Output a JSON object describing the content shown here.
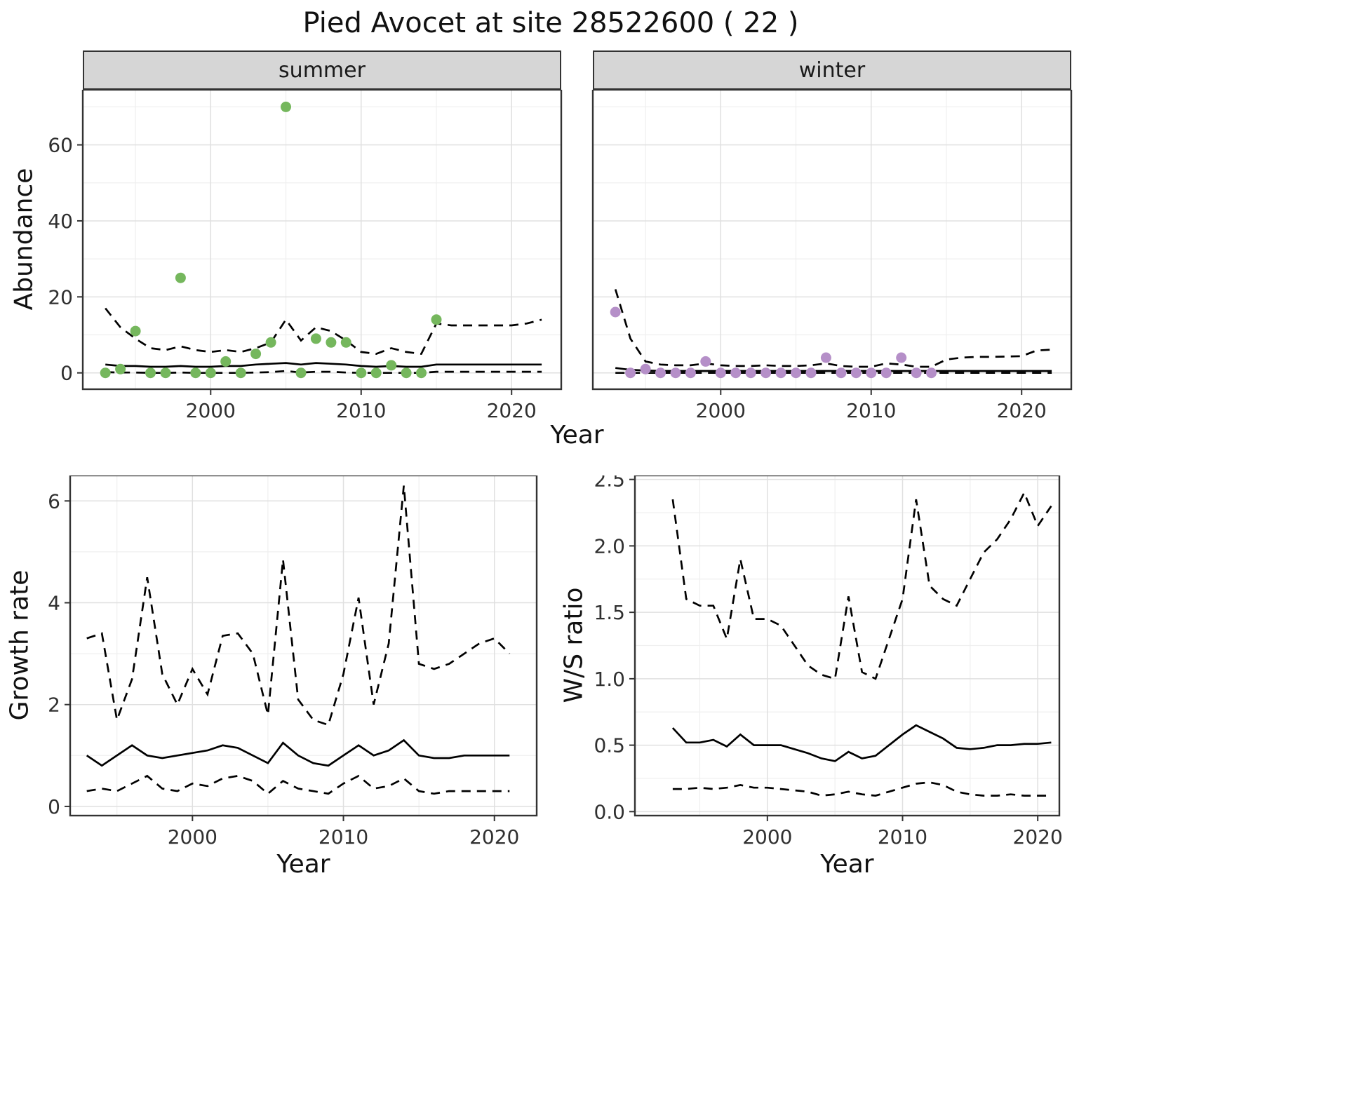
{
  "title": "Pied Avocet at site 28522600 ( 22 )",
  "chart_data": [
    {
      "id": "abundance-summer",
      "type": "scatter",
      "facet_label": "summer",
      "xlabel": "Year",
      "ylabel": "Abundance",
      "xlim": [
        1991.5,
        2023.3
      ],
      "ylim": [
        -4.3,
        74.5
      ],
      "xticks": {
        "major": [
          2000,
          2010,
          2020
        ],
        "labels": [
          "2000",
          "2010",
          "2020"
        ],
        "minor": [
          1995,
          2005,
          2015
        ]
      },
      "yticks": {
        "major": [
          0,
          20,
          40,
          60
        ],
        "labels": [
          "0",
          "20",
          "40",
          "60"
        ],
        "minor": [
          10,
          30,
          50,
          70
        ]
      },
      "point_color": "#75b75d",
      "points": {
        "x": [
          1993,
          1994,
          1995,
          1996,
          1997,
          1998,
          1999,
          2000,
          2001,
          2002,
          2003,
          2004,
          2005,
          2006,
          2007,
          2008,
          2009,
          2010,
          2011,
          2012,
          2013,
          2014,
          2015
        ],
        "y": [
          0,
          1,
          11,
          0,
          0,
          25,
          0,
          0,
          3,
          0,
          5,
          8,
          70,
          0,
          9,
          8,
          8,
          0,
          0,
          2,
          0,
          0,
          14
        ]
      },
      "lines_x": [
        1993,
        1994,
        1995,
        1996,
        1997,
        1998,
        1999,
        2000,
        2001,
        2002,
        2003,
        2004,
        2005,
        2006,
        2007,
        2008,
        2009,
        2010,
        2011,
        2012,
        2013,
        2014,
        2015,
        2016,
        2017,
        2018,
        2019,
        2020,
        2021,
        2022
      ],
      "lines": [
        {
          "name": "fit",
          "style": "solid",
          "y": [
            2.2,
            1.8,
            1.8,
            1.6,
            1.6,
            1.8,
            1.6,
            1.6,
            1.8,
            1.8,
            2.2,
            2.4,
            2.6,
            2.2,
            2.6,
            2.4,
            2.2,
            1.8,
            1.6,
            1.8,
            1.6,
            1.6,
            2.2,
            2.2,
            2.2,
            2.2,
            2.2,
            2.2,
            2.2,
            2.2
          ]
        },
        {
          "name": "upper-ci",
          "style": "dashed",
          "y": [
            17,
            12,
            9,
            6.5,
            6,
            7,
            6,
            5.5,
            6,
            5.5,
            6.5,
            8,
            14,
            8.5,
            12,
            11,
            8.5,
            5.5,
            5,
            6.5,
            5.5,
            5,
            13,
            12.5,
            12.5,
            12.5,
            12.5,
            12.5,
            13,
            14
          ]
        },
        {
          "name": "lower-ci",
          "style": "dashed",
          "y": [
            0.2,
            0.1,
            0.1,
            0,
            0,
            0.1,
            0,
            0,
            0,
            0,
            0.1,
            0.2,
            0.5,
            0.1,
            0.3,
            0.3,
            0.1,
            0,
            0,
            0,
            0,
            0,
            0.3,
            0.3,
            0.3,
            0.3,
            0.3,
            0.3,
            0.3,
            0.3
          ]
        }
      ]
    },
    {
      "id": "abundance-winter",
      "type": "scatter",
      "facet_label": "winter",
      "xlabel": "Year",
      "ylabel": "Abundance",
      "xlim": [
        1991.5,
        2023.3
      ],
      "ylim": [
        -4.3,
        74.5
      ],
      "xticks": {
        "major": [
          2000,
          2010,
          2020
        ],
        "labels": [
          "2000",
          "2010",
          "2020"
        ],
        "minor": [
          1995,
          2005,
          2015
        ]
      },
      "yticks": {
        "major": [
          0,
          20,
          40,
          60
        ],
        "labels": [
          "0",
          "20",
          "40",
          "60"
        ],
        "minor": [
          10,
          30,
          50,
          70
        ]
      },
      "point_color": "#b58fc8",
      "points": {
        "x": [
          1993,
          1994,
          1995,
          1996,
          1997,
          1998,
          1999,
          2000,
          2001,
          2002,
          2003,
          2004,
          2005,
          2006,
          2007,
          2008,
          2009,
          2010,
          2011,
          2012,
          2013,
          2014
        ],
        "y": [
          16,
          0,
          1,
          0,
          0,
          0,
          3,
          0,
          0,
          0,
          0,
          0,
          0,
          0,
          4,
          0,
          0,
          0,
          0,
          4,
          0,
          0
        ]
      },
      "lines_x": [
        1993,
        1994,
        1995,
        1996,
        1997,
        1998,
        1999,
        2000,
        2001,
        2002,
        2003,
        2004,
        2005,
        2006,
        2007,
        2008,
        2009,
        2010,
        2011,
        2012,
        2013,
        2014,
        2015,
        2016,
        2017,
        2018,
        2019,
        2020,
        2021,
        2022
      ],
      "lines": [
        {
          "name": "fit",
          "style": "solid",
          "y": [
            1.3,
            0.8,
            0.6,
            0.5,
            0.5,
            0.5,
            0.5,
            0.5,
            0.5,
            0.5,
            0.5,
            0.5,
            0.5,
            0.5,
            0.5,
            0.5,
            0.5,
            0.5,
            0.5,
            0.5,
            0.5,
            0.5,
            0.5,
            0.5,
            0.5,
            0.5,
            0.5,
            0.5,
            0.5,
            0.5
          ]
        },
        {
          "name": "upper-ci",
          "style": "dashed",
          "y": [
            22,
            9,
            3,
            2.2,
            2,
            2,
            2.5,
            2,
            1.8,
            1.8,
            2,
            1.8,
            1.8,
            2,
            2.5,
            1.8,
            1.6,
            1.6,
            2.5,
            2.2,
            1.6,
            1.6,
            3.5,
            4,
            4.2,
            4.2,
            4.3,
            4.4,
            5.9,
            6.1
          ]
        },
        {
          "name": "lower-ci",
          "style": "dashed",
          "y": [
            0,
            0,
            0,
            0,
            0,
            0,
            0,
            0,
            0,
            0,
            0,
            0,
            0,
            0,
            0,
            0,
            0,
            0,
            0,
            0,
            0,
            0,
            0,
            0,
            0,
            0,
            0,
            0,
            0,
            0
          ]
        }
      ]
    },
    {
      "id": "growth-rate",
      "type": "line",
      "facet_label": "",
      "xlabel": "Year",
      "ylabel": "Growth rate",
      "xlim": [
        1991.9,
        2022.8
      ],
      "ylim": [
        -0.18,
        6.5
      ],
      "xticks": {
        "major": [
          2000,
          2010,
          2020
        ],
        "labels": [
          "2000",
          "2010",
          "2020"
        ],
        "minor": [
          1995,
          2005,
          2015
        ]
      },
      "yticks": {
        "major": [
          0,
          2,
          4,
          6
        ],
        "labels": [
          "0",
          "2",
          "4",
          "6"
        ],
        "minor": [
          1,
          3,
          5
        ]
      },
      "lines_x": [
        1993,
        1994,
        1995,
        1996,
        1997,
        1998,
        1999,
        2000,
        2001,
        2002,
        2003,
        2004,
        2005,
        2006,
        2007,
        2008,
        2009,
        2010,
        2011,
        2012,
        2013,
        2014,
        2015,
        2016,
        2017,
        2018,
        2019,
        2020,
        2021
      ],
      "lines": [
        {
          "name": "fit",
          "style": "solid",
          "y": [
            1.0,
            0.8,
            1.0,
            1.2,
            1.0,
            0.95,
            1.0,
            1.05,
            1.1,
            1.2,
            1.15,
            1.0,
            0.85,
            1.25,
            1.0,
            0.85,
            0.8,
            1.0,
            1.2,
            1.0,
            1.1,
            1.3,
            1.0,
            0.95,
            0.95,
            1.0,
            1.0,
            1.0,
            1.0
          ]
        },
        {
          "name": "upper-ci",
          "style": "dashed",
          "y": [
            3.3,
            3.4,
            1.7,
            2.5,
            4.5,
            2.6,
            2.0,
            2.7,
            2.2,
            3.35,
            3.4,
            3.0,
            1.8,
            4.85,
            2.1,
            1.7,
            1.6,
            2.6,
            4.1,
            2.0,
            3.2,
            6.3,
            2.8,
            2.7,
            2.8,
            3.0,
            3.2,
            3.3,
            3.0
          ]
        },
        {
          "name": "lower-ci",
          "style": "dashed",
          "y": [
            0.3,
            0.35,
            0.3,
            0.45,
            0.6,
            0.35,
            0.3,
            0.45,
            0.4,
            0.55,
            0.6,
            0.5,
            0.25,
            0.5,
            0.35,
            0.3,
            0.25,
            0.45,
            0.6,
            0.35,
            0.4,
            0.55,
            0.3,
            0.25,
            0.3,
            0.3,
            0.3,
            0.3,
            0.3
          ]
        }
      ]
    },
    {
      "id": "ws-ratio",
      "type": "line",
      "facet_label": "",
      "xlabel": "Year",
      "ylabel": "W/S ratio",
      "xlim": [
        1990.2,
        2021.6
      ],
      "ylim": [
        -0.03,
        2.53
      ],
      "xticks": {
        "major": [
          2000,
          2010,
          2020
        ],
        "labels": [
          "2000",
          "2010",
          "2020"
        ],
        "minor": [
          1995,
          2005,
          2015
        ]
      },
      "yticks": {
        "major": [
          0,
          0.5,
          1,
          1.5,
          2,
          2.5
        ],
        "labels": [
          "0.0",
          "0.5",
          "1.0",
          "1.5",
          "2.0",
          "2.5"
        ],
        "minor": [
          0.25,
          0.75,
          1.25,
          1.75,
          2.25
        ]
      },
      "lines_x": [
        1993,
        1994,
        1995,
        1996,
        1997,
        1998,
        1999,
        2000,
        2001,
        2002,
        2003,
        2004,
        2005,
        2006,
        2007,
        2008,
        2009,
        2010,
        2011,
        2012,
        2013,
        2014,
        2015,
        2016,
        2017,
        2018,
        2019,
        2020,
        2021
      ],
      "lines": [
        {
          "name": "fit",
          "style": "solid",
          "y": [
            0.63,
            0.52,
            0.52,
            0.54,
            0.49,
            0.58,
            0.5,
            0.5,
            0.5,
            0.47,
            0.44,
            0.4,
            0.38,
            0.45,
            0.4,
            0.42,
            0.5,
            0.58,
            0.65,
            0.6,
            0.55,
            0.48,
            0.47,
            0.48,
            0.5,
            0.5,
            0.51,
            0.51,
            0.52
          ]
        },
        {
          "name": "upper-ci",
          "style": "dashed",
          "y": [
            2.35,
            1.6,
            1.55,
            1.55,
            1.3,
            1.9,
            1.45,
            1.45,
            1.4,
            1.25,
            1.1,
            1.03,
            1.0,
            1.62,
            1.05,
            1.0,
            1.3,
            1.6,
            2.35,
            1.7,
            1.6,
            1.55,
            1.75,
            1.95,
            2.05,
            2.2,
            2.4,
            2.15,
            2.3
          ]
        },
        {
          "name": "lower-ci",
          "style": "dashed",
          "y": [
            0.17,
            0.17,
            0.18,
            0.17,
            0.18,
            0.2,
            0.18,
            0.18,
            0.17,
            0.16,
            0.15,
            0.12,
            0.13,
            0.15,
            0.13,
            0.12,
            0.15,
            0.18,
            0.21,
            0.22,
            0.2,
            0.15,
            0.13,
            0.12,
            0.12,
            0.13,
            0.12,
            0.12,
            0.12
          ]
        }
      ]
    }
  ]
}
